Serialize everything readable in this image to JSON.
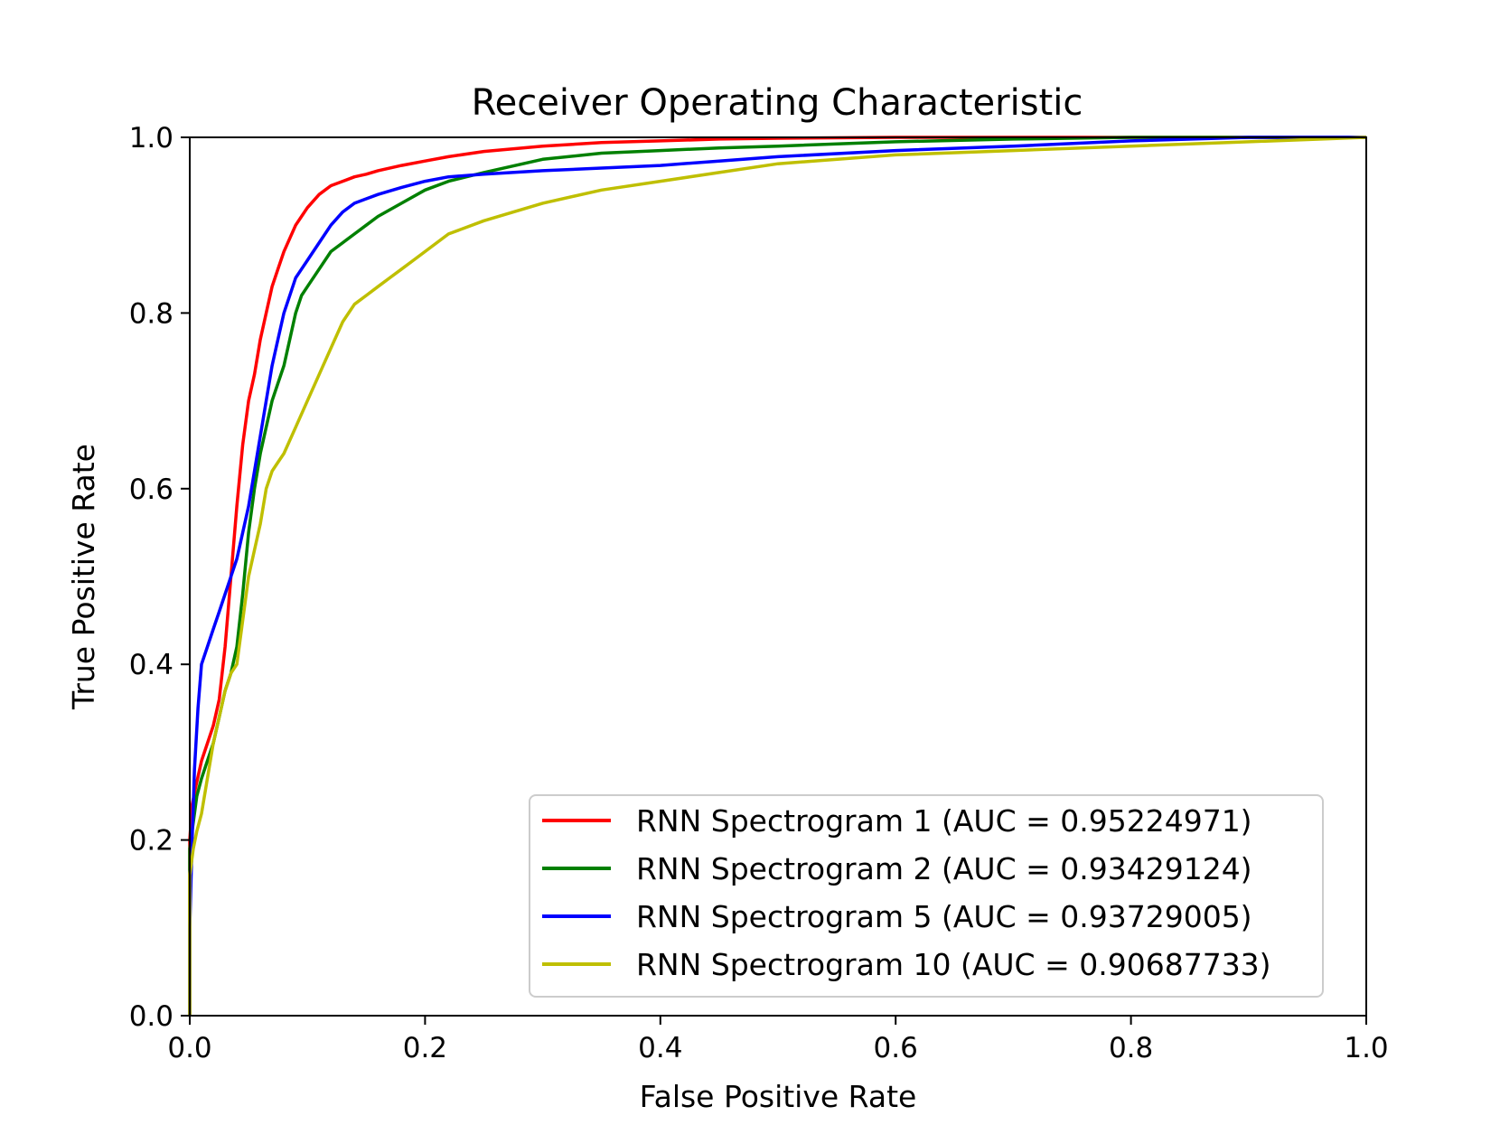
{
  "chart_data": {
    "type": "line",
    "title": "Receiver Operating Characteristic",
    "xlabel": "False Positive Rate",
    "ylabel": "True Positive Rate",
    "xlim": [
      0.0,
      1.0
    ],
    "ylim": [
      0.0,
      1.0
    ],
    "xticks": [
      "0.0",
      "0.2",
      "0.4",
      "0.6",
      "0.8",
      "1.0"
    ],
    "yticks": [
      "0.0",
      "0.2",
      "0.4",
      "0.6",
      "0.8",
      "1.0"
    ],
    "grid": false,
    "legend_position": "lower-right",
    "series": [
      {
        "name": "RNN Spectrogram 1 (AUC = 0.95224971)",
        "color": "#ff0000",
        "x": [
          0.0,
          0.0,
          0.002,
          0.005,
          0.01,
          0.015,
          0.02,
          0.025,
          0.03,
          0.035,
          0.04,
          0.045,
          0.05,
          0.055,
          0.06,
          0.065,
          0.07,
          0.075,
          0.08,
          0.085,
          0.09,
          0.095,
          0.1,
          0.11,
          0.12,
          0.13,
          0.14,
          0.15,
          0.16,
          0.18,
          0.2,
          0.22,
          0.25,
          0.3,
          0.35,
          0.4,
          0.45,
          0.5,
          0.6,
          0.7,
          0.8,
          0.9,
          1.0
        ],
        "y": [
          0.0,
          0.2,
          0.24,
          0.26,
          0.29,
          0.31,
          0.33,
          0.36,
          0.42,
          0.5,
          0.58,
          0.65,
          0.7,
          0.73,
          0.77,
          0.8,
          0.83,
          0.85,
          0.87,
          0.885,
          0.9,
          0.91,
          0.92,
          0.935,
          0.945,
          0.95,
          0.955,
          0.958,
          0.962,
          0.968,
          0.973,
          0.978,
          0.984,
          0.99,
          0.994,
          0.996,
          0.998,
          0.999,
          1.0,
          1.0,
          1.0,
          1.0,
          1.0
        ]
      },
      {
        "name": "RNN Spectrogram 2 (AUC = 0.93429124)",
        "color": "#008000",
        "x": [
          0.0,
          0.0,
          0.003,
          0.006,
          0.01,
          0.015,
          0.02,
          0.025,
          0.03,
          0.035,
          0.04,
          0.045,
          0.05,
          0.055,
          0.06,
          0.065,
          0.07,
          0.075,
          0.08,
          0.085,
          0.09,
          0.095,
          0.1,
          0.11,
          0.12,
          0.13,
          0.14,
          0.15,
          0.16,
          0.18,
          0.2,
          0.22,
          0.25,
          0.3,
          0.35,
          0.4,
          0.45,
          0.5,
          0.6,
          0.7,
          0.8,
          0.9,
          1.0
        ],
        "y": [
          0.0,
          0.19,
          0.22,
          0.25,
          0.27,
          0.29,
          0.31,
          0.34,
          0.37,
          0.39,
          0.42,
          0.48,
          0.55,
          0.6,
          0.64,
          0.67,
          0.7,
          0.72,
          0.74,
          0.77,
          0.8,
          0.82,
          0.83,
          0.85,
          0.87,
          0.88,
          0.89,
          0.9,
          0.91,
          0.925,
          0.94,
          0.95,
          0.96,
          0.975,
          0.982,
          0.985,
          0.988,
          0.99,
          0.995,
          0.998,
          1.0,
          1.0,
          1.0
        ]
      },
      {
        "name": "RNN Spectrogram 5 (AUC = 0.93729005)",
        "color": "#0000ff",
        "x": [
          0.0,
          0.0,
          0.002,
          0.004,
          0.007,
          0.01,
          0.015,
          0.02,
          0.025,
          0.03,
          0.035,
          0.04,
          0.045,
          0.05,
          0.055,
          0.06,
          0.065,
          0.07,
          0.075,
          0.08,
          0.085,
          0.09,
          0.095,
          0.1,
          0.11,
          0.12,
          0.13,
          0.14,
          0.15,
          0.16,
          0.18,
          0.2,
          0.22,
          0.25,
          0.3,
          0.35,
          0.4,
          0.45,
          0.5,
          0.6,
          0.7,
          0.8,
          0.9,
          1.0
        ],
        "y": [
          0.0,
          0.1,
          0.2,
          0.28,
          0.35,
          0.4,
          0.42,
          0.44,
          0.46,
          0.48,
          0.5,
          0.52,
          0.55,
          0.58,
          0.62,
          0.66,
          0.7,
          0.74,
          0.77,
          0.8,
          0.82,
          0.84,
          0.85,
          0.86,
          0.88,
          0.9,
          0.915,
          0.925,
          0.93,
          0.935,
          0.943,
          0.95,
          0.955,
          0.958,
          0.962,
          0.965,
          0.968,
          0.973,
          0.978,
          0.985,
          0.99,
          0.996,
          1.0,
          1.0
        ]
      },
      {
        "name": "RNN Spectrogram 10 (AUC = 0.90687733)",
        "color": "#bfbf00",
        "x": [
          0.0,
          0.0,
          0.003,
          0.006,
          0.01,
          0.015,
          0.02,
          0.025,
          0.03,
          0.035,
          0.04,
          0.045,
          0.05,
          0.055,
          0.06,
          0.065,
          0.07,
          0.075,
          0.08,
          0.09,
          0.1,
          0.11,
          0.12,
          0.13,
          0.14,
          0.15,
          0.16,
          0.17,
          0.18,
          0.19,
          0.2,
          0.22,
          0.25,
          0.3,
          0.35,
          0.4,
          0.45,
          0.5,
          0.6,
          0.7,
          0.8,
          0.9,
          1.0
        ],
        "y": [
          0.0,
          0.16,
          0.19,
          0.21,
          0.23,
          0.27,
          0.31,
          0.34,
          0.37,
          0.39,
          0.4,
          0.45,
          0.5,
          0.53,
          0.56,
          0.6,
          0.62,
          0.63,
          0.64,
          0.67,
          0.7,
          0.73,
          0.76,
          0.79,
          0.81,
          0.82,
          0.83,
          0.84,
          0.85,
          0.86,
          0.87,
          0.89,
          0.905,
          0.925,
          0.94,
          0.95,
          0.96,
          0.97,
          0.98,
          0.985,
          0.99,
          0.995,
          1.0
        ]
      }
    ]
  }
}
